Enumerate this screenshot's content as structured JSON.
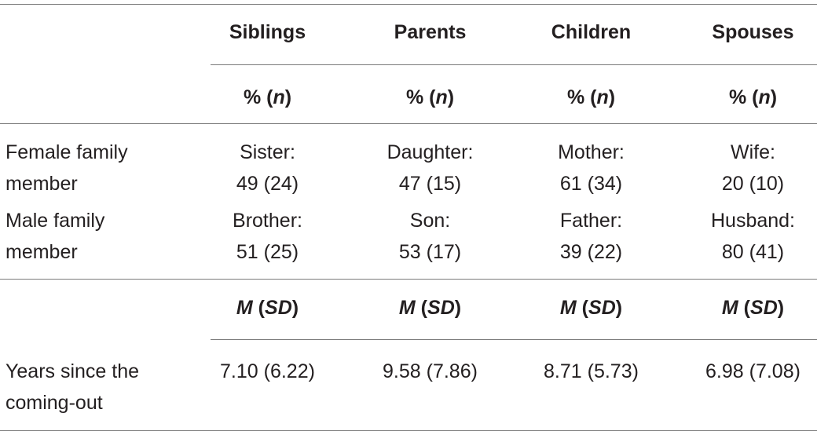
{
  "columns": [
    "Siblings",
    "Parents",
    "Children",
    "Spouses"
  ],
  "subheader_pct": {
    "prefix": "% (",
    "italic": "n",
    "suffix": ")"
  },
  "subheader_msd": {
    "m": "M",
    "open": " (",
    "sd": "SD",
    "close": ")"
  },
  "rows": [
    {
      "label_line1": "Female family",
      "label_line2": "member",
      "cells": [
        {
          "line1": "Sister:",
          "line2": "49 (24)"
        },
        {
          "line1": "Daughter:",
          "line2": "47 (15)"
        },
        {
          "line1": "Mother:",
          "line2": "61 (34)"
        },
        {
          "line1": "Wife:",
          "line2": "20 (10)"
        }
      ]
    },
    {
      "label_line1": "Male family",
      "label_line2": "member",
      "cells": [
        {
          "line1": "Brother:",
          "line2": "51 (25)"
        },
        {
          "line1": "Son:",
          "line2": "53 (17)"
        },
        {
          "line1": "Father:",
          "line2": "39 (22)"
        },
        {
          "line1": "Husband:",
          "line2": "80 (41)"
        }
      ]
    }
  ],
  "years_row": {
    "label_line1": "Years since the",
    "label_line2": "coming-out",
    "values": [
      "7.10 (6.22)",
      "9.58 (7.86)",
      "8.71 (5.73)",
      "6.98 (7.08)"
    ]
  }
}
